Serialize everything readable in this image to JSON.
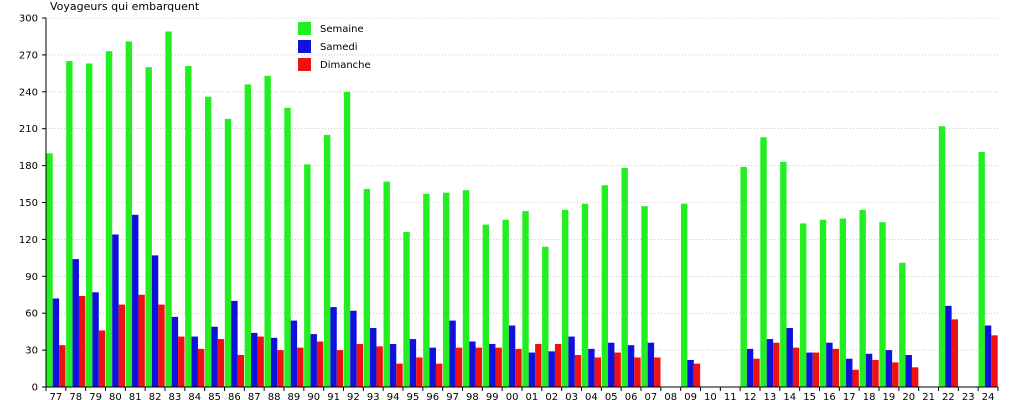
{
  "chart_data": {
    "type": "bar",
    "ylabel": "Voyageurs qui embarquent",
    "xlabel": "",
    "ylim": [
      0,
      300
    ],
    "yticks": [
      0,
      30,
      60,
      90,
      120,
      150,
      180,
      210,
      240,
      270,
      300
    ],
    "grid": true,
    "legend_position": "top-center",
    "categories": [
      "77",
      "78",
      "79",
      "80",
      "81",
      "82",
      "83",
      "84",
      "85",
      "86",
      "87",
      "88",
      "89",
      "90",
      "91",
      "92",
      "93",
      "94",
      "95",
      "96",
      "97",
      "98",
      "99",
      "00",
      "01",
      "02",
      "03",
      "04",
      "05",
      "06",
      "07",
      "08",
      "09",
      "10",
      "11",
      "12",
      "13",
      "14",
      "15",
      "16",
      "17",
      "18",
      "19",
      "20",
      "21",
      "22",
      "23",
      "24"
    ],
    "series": [
      {
        "name": "Semaine",
        "color": "#22ee22",
        "values": [
          190,
          265,
          263,
          273,
          281,
          260,
          289,
          261,
          236,
          218,
          246,
          253,
          227,
          181,
          205,
          240,
          161,
          167,
          126,
          157,
          158,
          160,
          132,
          136,
          143,
          114,
          144,
          149,
          164,
          178,
          147,
          0,
          149,
          0,
          0,
          179,
          203,
          183,
          133,
          136,
          137,
          144,
          134,
          101,
          0,
          212,
          0,
          191
        ]
      },
      {
        "name": "Samedi",
        "color": "#1111dd",
        "values": [
          72,
          104,
          77,
          124,
          140,
          107,
          57,
          41,
          49,
          70,
          44,
          40,
          54,
          43,
          65,
          62,
          48,
          35,
          39,
          32,
          54,
          37,
          35,
          50,
          28,
          29,
          41,
          31,
          36,
          34,
          36,
          0,
          22,
          0,
          0,
          31,
          39,
          48,
          28,
          36,
          23,
          27,
          30,
          26,
          0,
          66,
          0,
          50
        ]
      },
      {
        "name": "Dimanche",
        "color": "#ee1111",
        "values": [
          34,
          74,
          46,
          67,
          75,
          67,
          41,
          31,
          39,
          26,
          41,
          30,
          32,
          37,
          30,
          35,
          33,
          19,
          24,
          19,
          32,
          32,
          32,
          31,
          35,
          35,
          26,
          24,
          28,
          24,
          24,
          0,
          19,
          0,
          0,
          23,
          36,
          32,
          28,
          31,
          14,
          22,
          20,
          16,
          0,
          55,
          0,
          42
        ]
      }
    ]
  }
}
